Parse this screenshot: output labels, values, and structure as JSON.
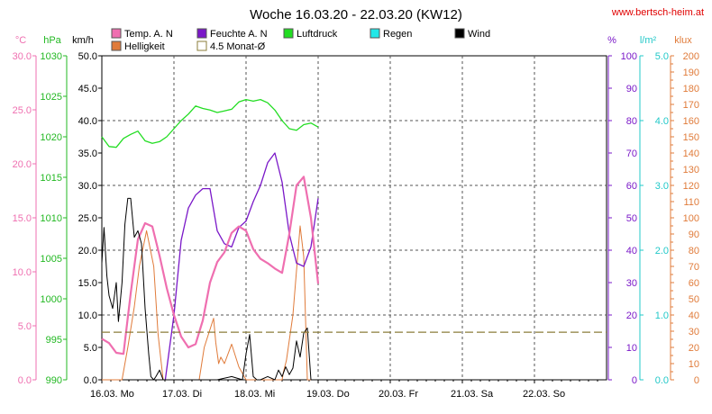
{
  "chart_data": {
    "type": "line",
    "title": "Woche 16.03.20 - 22.03.20 (KW12)",
    "source_label": "www.bertsch-heim.at",
    "x_tick_labels": [
      "16.03.  Mo",
      "17.03.  Di",
      "18.03.  Mi",
      "19.03.  Do",
      "20.03.  Fr",
      "21.03.  Sa",
      "22.03.  So"
    ],
    "x_range_days": [
      0,
      7
    ],
    "grid": true,
    "axes": {
      "temp": {
        "unit": "°C",
        "range": [
          0,
          30
        ],
        "ticks": [
          0.0,
          5.0,
          10.0,
          15.0,
          20.0,
          25.0,
          30.0
        ],
        "color": "#ef6fb0"
      },
      "pressure": {
        "unit": "hPa",
        "range": [
          990,
          1030
        ],
        "ticks": [
          990,
          995,
          1000,
          1005,
          1010,
          1015,
          1020,
          1025,
          1030
        ],
        "color": "#22b822"
      },
      "wind": {
        "unit": "km/h",
        "range": [
          0,
          50
        ],
        "ticks": [
          0.0,
          5.0,
          10.0,
          15.0,
          20.0,
          25.0,
          30.0,
          35.0,
          40.0,
          45.0,
          50.0
        ],
        "color": "#000000"
      },
      "humidity": {
        "unit": "%",
        "range": [
          0,
          100
        ],
        "ticks": [
          0,
          10,
          20,
          30,
          40,
          50,
          60,
          70,
          80,
          90,
          100
        ],
        "color": "#7a18c8"
      },
      "rain": {
        "unit": "l/m²",
        "range": [
          0,
          5
        ],
        "ticks": [
          0.0,
          1.0,
          2.0,
          3.0,
          4.0,
          5.0
        ],
        "color": "#22c8c8"
      },
      "light": {
        "unit": "klux",
        "range": [
          0,
          200
        ],
        "ticks": [
          0,
          10,
          20,
          30,
          40,
          50,
          60,
          70,
          80,
          90,
          100,
          110,
          120,
          130,
          140,
          150,
          160,
          170,
          180,
          190,
          200
        ],
        "color": "#e07b3a"
      }
    },
    "legend": [
      {
        "name": "Temp. A. N",
        "color": "#ef6fb0"
      },
      {
        "name": "Feuchte A. N",
        "color": "#7a18c8"
      },
      {
        "name": "Luftdruck",
        "color": "#22dd22"
      },
      {
        "name": "Regen",
        "color": "#22e8e8"
      },
      {
        "name": "Wind",
        "color": "#000000"
      },
      {
        "name": "Helligkeit",
        "color": "#e07b3a"
      },
      {
        "name": "4.5 Monat-Ø",
        "color": "#8b7d3a"
      }
    ],
    "series": [
      {
        "name": "Temp. A. N",
        "axis": "temp",
        "color": "#ef6fb0",
        "x": [
          0.0,
          0.1,
          0.2,
          0.3,
          0.4,
          0.5,
          0.6,
          0.7,
          0.8,
          0.9,
          1.0,
          1.1,
          1.2,
          1.3,
          1.4,
          1.5,
          1.6,
          1.7,
          1.8,
          1.9,
          2.0,
          2.1,
          2.2,
          2.3,
          2.4,
          2.5,
          2.6,
          2.7,
          2.8,
          2.9,
          3.0
        ],
        "y": [
          3.8,
          3.4,
          2.5,
          2.4,
          8.0,
          13.0,
          14.5,
          14.2,
          11.5,
          8.5,
          6.0,
          4.0,
          3.0,
          3.3,
          5.5,
          9.0,
          10.9,
          11.8,
          13.6,
          14.2,
          13.8,
          12.1,
          11.2,
          10.8,
          10.3,
          9.9,
          13.5,
          18.0,
          18.8,
          15.0,
          8.9
        ]
      },
      {
        "name": "Feuchte A. N",
        "axis": "humidity",
        "color": "#7a18c8",
        "x": [
          0.88,
          1.0,
          1.1,
          1.2,
          1.3,
          1.4,
          1.5,
          1.6,
          1.7,
          1.8,
          1.9,
          2.0,
          2.1,
          2.2,
          2.3,
          2.4,
          2.5,
          2.6,
          2.7,
          2.8,
          2.9,
          3.0
        ],
        "y": [
          0,
          20,
          43,
          53,
          57,
          59,
          59,
          46,
          42,
          41,
          47,
          49,
          55,
          60,
          67,
          70,
          61,
          45,
          36,
          35,
          41,
          56
        ]
      },
      {
        "name": "Luftdruck",
        "axis": "pressure",
        "color": "#22dd22",
        "x": [
          0.0,
          0.1,
          0.2,
          0.3,
          0.4,
          0.5,
          0.6,
          0.7,
          0.8,
          0.9,
          1.0,
          1.1,
          1.2,
          1.3,
          1.4,
          1.5,
          1.6,
          1.7,
          1.8,
          1.9,
          2.0,
          2.1,
          2.2,
          2.3,
          2.4,
          2.5,
          2.6,
          2.7,
          2.8,
          2.9,
          3.0
        ],
        "y": [
          1020.0,
          1018.8,
          1018.7,
          1019.8,
          1020.3,
          1020.7,
          1019.5,
          1019.2,
          1019.4,
          1020.0,
          1021.0,
          1022.0,
          1022.8,
          1023.8,
          1023.5,
          1023.3,
          1023.0,
          1023.2,
          1023.4,
          1024.3,
          1024.6,
          1024.4,
          1024.6,
          1024.2,
          1023.3,
          1022.0,
          1021.0,
          1020.8,
          1021.5,
          1021.7,
          1021.2
        ]
      },
      {
        "name": "Helligkeit",
        "axis": "light",
        "color": "#e07b3a",
        "x": [
          0.0,
          0.28,
          0.36,
          0.45,
          0.52,
          0.62,
          0.72,
          0.78,
          0.85,
          0.9,
          1.35,
          1.42,
          1.55,
          1.58,
          1.62,
          1.65,
          1.7,
          1.8,
          1.9,
          2.0,
          2.1,
          2.15,
          2.3,
          2.42,
          2.5,
          2.52,
          2.56,
          2.65,
          2.75,
          2.8,
          2.85,
          3.0
        ],
        "y": [
          0,
          0,
          20,
          45,
          70,
          92,
          70,
          28,
          0,
          0,
          0,
          20,
          38,
          23,
          10,
          14,
          10,
          22,
          8,
          0,
          0,
          0,
          0,
          0,
          0,
          5,
          12,
          40,
          95,
          76,
          0,
          0
        ]
      },
      {
        "name": "Wind",
        "axis": "wind",
        "color": "#000000",
        "x": [
          0.0,
          0.03,
          0.07,
          0.1,
          0.15,
          0.2,
          0.23,
          0.28,
          0.32,
          0.36,
          0.4,
          0.45,
          0.5,
          0.55,
          0.6,
          0.65,
          0.68,
          0.72,
          0.75,
          0.8,
          0.85,
          0.88,
          0.9,
          0.95,
          1.0,
          1.1,
          1.2,
          1.4,
          1.6,
          1.8,
          1.95,
          2.0,
          2.05,
          2.1,
          2.15,
          2.2,
          2.3,
          2.4,
          2.45,
          2.5,
          2.55,
          2.6,
          2.65,
          2.7,
          2.75,
          2.8,
          2.85,
          2.9,
          3.0
        ],
        "y": [
          18.0,
          23.5,
          16.0,
          13.0,
          11.0,
          15.0,
          9.0,
          15.0,
          24.0,
          28.0,
          28.0,
          22.0,
          23.0,
          21.0,
          11.0,
          4.0,
          0.5,
          0.0,
          0.5,
          1.5,
          0.0,
          0.0,
          0.0,
          0.0,
          0.0,
          0.0,
          0.0,
          0.0,
          0.0,
          0.5,
          0.0,
          4.0,
          7.0,
          0.5,
          0.0,
          0.0,
          0.5,
          0.0,
          1.5,
          0.5,
          2.0,
          0.8,
          1.8,
          6.0,
          3.5,
          7.2,
          8.0,
          0.0,
          0.0
        ]
      },
      {
        "name": "4.5 Monat-Ø",
        "axis": "wind",
        "color": "#8b7d3a",
        "style": "dashed",
        "x": [
          0,
          7
        ],
        "y": [
          7.35,
          7.35
        ]
      }
    ]
  }
}
